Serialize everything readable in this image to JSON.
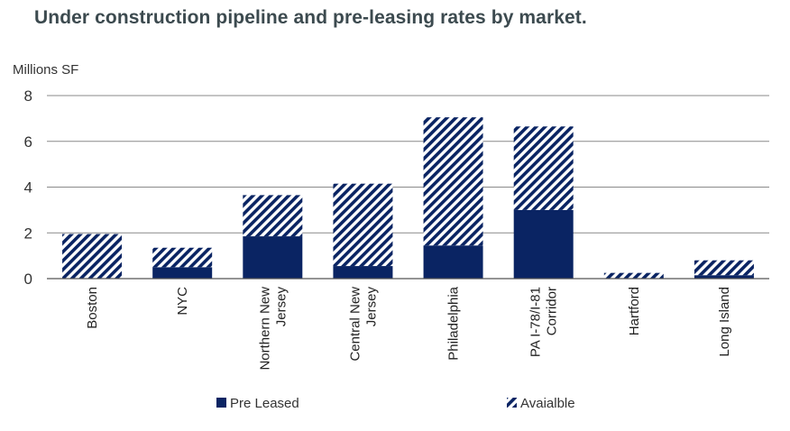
{
  "chart_data": {
    "type": "bar",
    "stacked": true,
    "title": "Under construction pipeline and pre-leasing rates by market.",
    "ylabel": "Millions SF",
    "xlabel": "",
    "ylim": [
      0,
      8
    ],
    "yticks": [
      "0",
      "2",
      "4",
      "6",
      "8"
    ],
    "categories": [
      [
        "Boston"
      ],
      [
        "NYC"
      ],
      [
        "Northern New",
        "Jersey"
      ],
      [
        "Central New",
        "Jersey"
      ],
      [
        "Philadelphia"
      ],
      [
        "PA I-78/I-81",
        "Corridor"
      ],
      [
        "Hartford"
      ],
      [
        "Long Island"
      ]
    ],
    "series": [
      {
        "name": "Pre Leased",
        "color": "#0a2463",
        "pattern": "solid",
        "values": [
          0.0,
          0.5,
          1.85,
          0.55,
          1.45,
          3.0,
          0.0,
          0.15
        ]
      },
      {
        "name": "Avaialble",
        "color": "#0a2463",
        "pattern": "diagonal-hatch",
        "values": [
          1.95,
          0.85,
          1.8,
          3.6,
          5.6,
          3.65,
          0.25,
          0.65
        ]
      }
    ],
    "legend_position": "bottom",
    "grid": true
  }
}
